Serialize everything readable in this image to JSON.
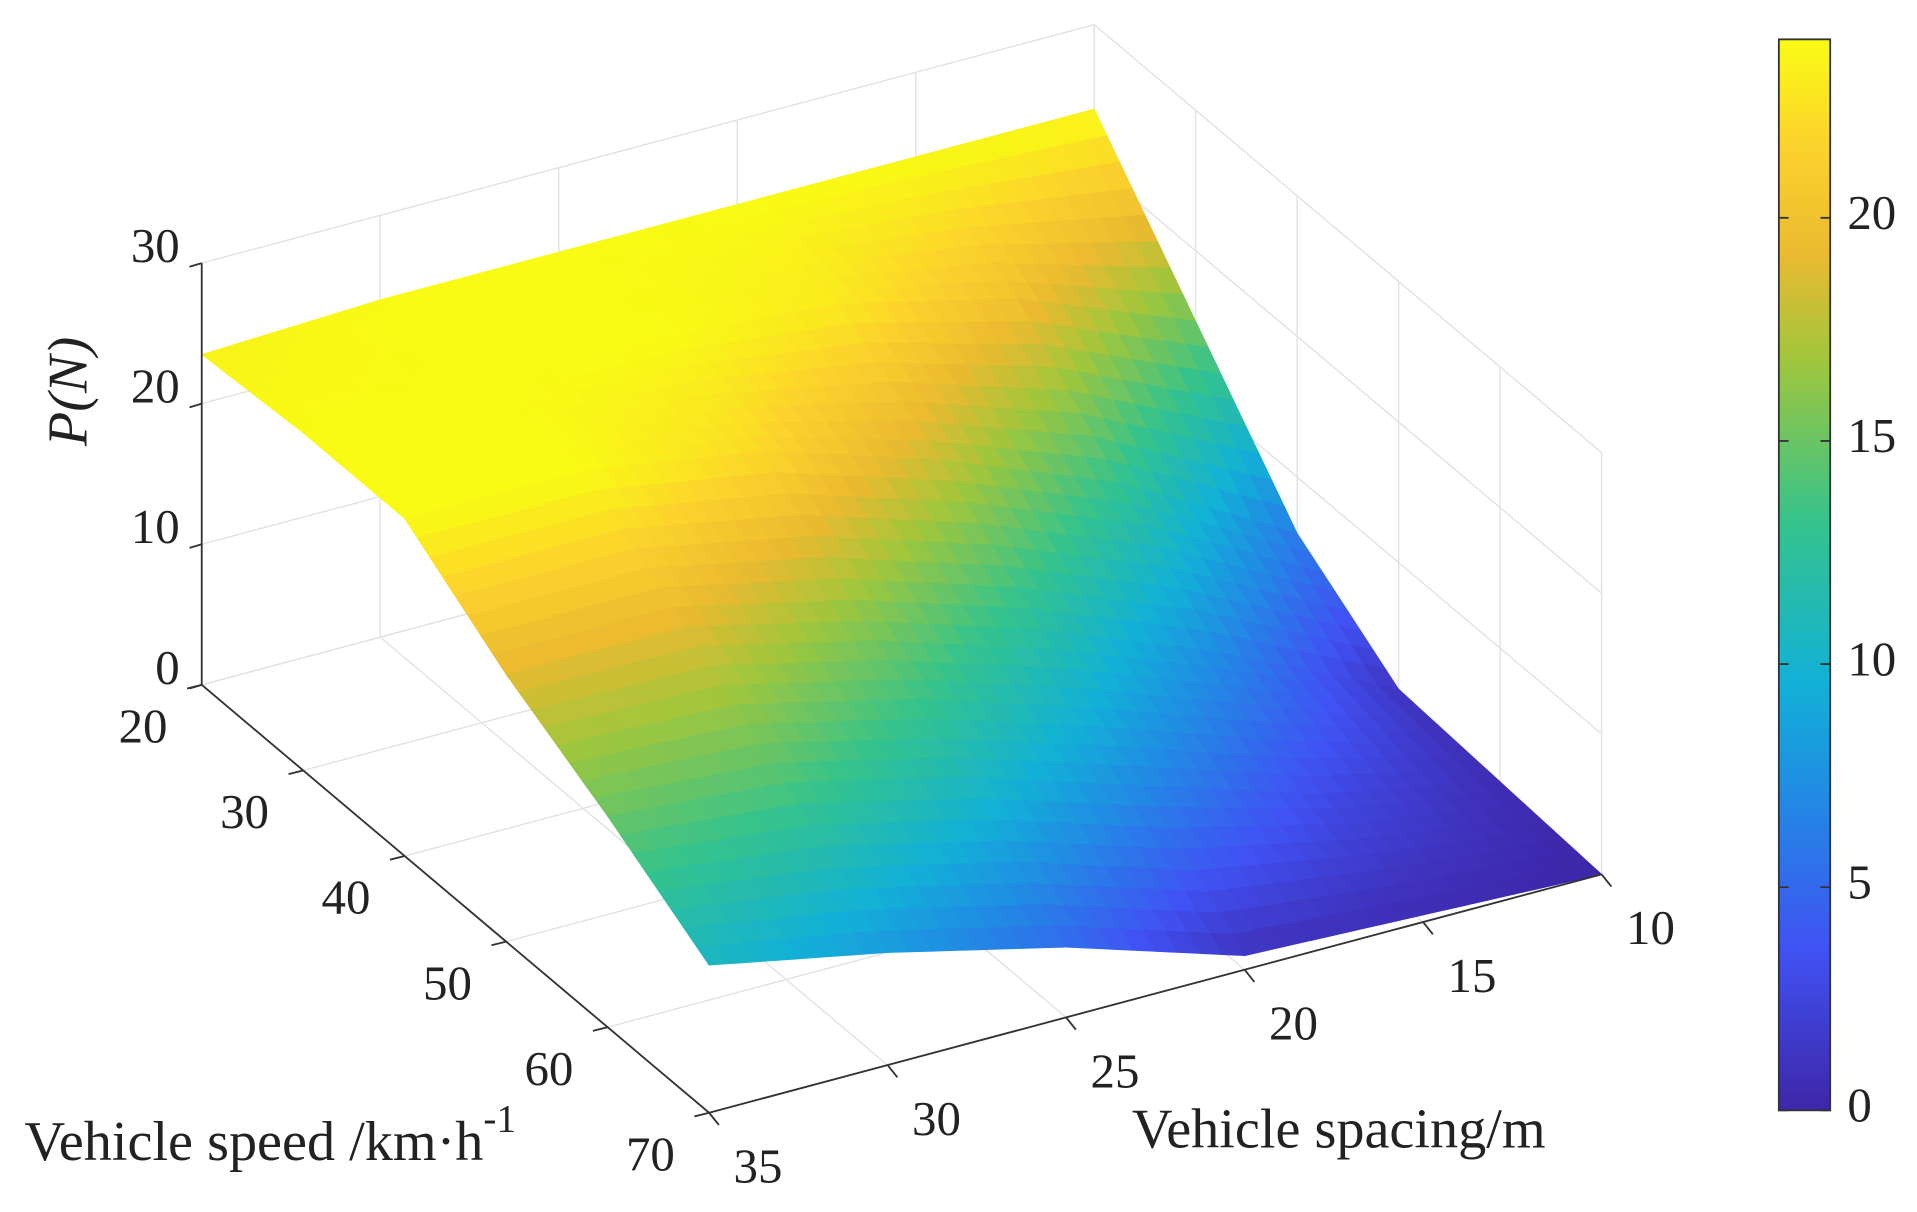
{
  "chart_data": {
    "type": "surface",
    "xlabel": "Vehicle spacing/m",
    "ylabel": {
      "text": "Vehicle speed /km·h",
      "superscript": "-1"
    },
    "zlabel": "P(N)",
    "x": [
      10,
      15,
      20,
      25,
      30,
      35
    ],
    "y": [
      20,
      30,
      40,
      50,
      60,
      70
    ],
    "z": [
      [
        24,
        24,
        24,
        24,
        24,
        23.5
      ],
      [
        15,
        20,
        23,
        24,
        24,
        24
      ],
      [
        6,
        13,
        18,
        22,
        24,
        24
      ],
      [
        1,
        7,
        12,
        16,
        19,
        19
      ],
      [
        0.5,
        3,
        7,
        11,
        14,
        15
      ],
      [
        0,
        0.5,
        1,
        5,
        8,
        10.5
      ]
    ],
    "xlim": [
      10,
      35
    ],
    "xticks": [
      10,
      15,
      20,
      25,
      30,
      35
    ],
    "ylim": [
      20,
      70
    ],
    "yticks": [
      20,
      30,
      40,
      50,
      60,
      70
    ],
    "zlim": [
      0,
      30
    ],
    "zticks": [
      0,
      10,
      20,
      30
    ],
    "colormap": "parula",
    "colorbar": {
      "clim": [
        0,
        24
      ],
      "ticks": [
        0,
        5,
        10,
        15,
        20
      ]
    },
    "grid": true
  }
}
